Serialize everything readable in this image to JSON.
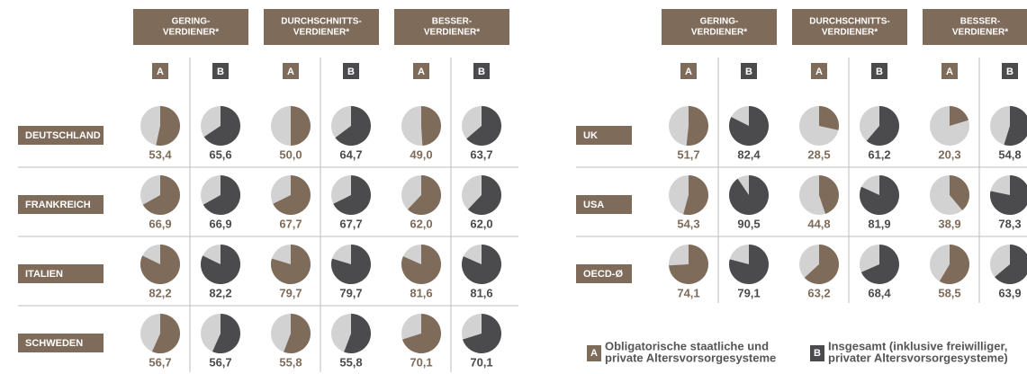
{
  "chart_data": [
    {
      "type": "pie",
      "groups": [
        [
          "GERING-",
          "VERDIENER*"
        ],
        [
          "DURCHSCHNITTS-",
          "VERDIENER*"
        ],
        [
          "BESSER-",
          "VERDIENER*"
        ]
      ],
      "columns": [
        "A",
        "B"
      ],
      "colors": [
        "#7f6b59",
        "#4b4b4d"
      ],
      "rest_color": "#d2d2d2",
      "rows": [
        {
          "name": "DEUTSCHLAND",
          "values": [
            53.4,
            65.6,
            50.0,
            64.7,
            49.0,
            63.7
          ],
          "value_labels": [
            "53,4",
            "65,6",
            "50,0",
            "64,7",
            "49,0",
            "63,7"
          ]
        },
        {
          "name": "FRANKREICH",
          "values": [
            66.9,
            66.9,
            67.7,
            67.7,
            62.0,
            62.0
          ],
          "value_labels": [
            "66,9",
            "66,9",
            "67,7",
            "67,7",
            "62,0",
            "62,0"
          ]
        },
        {
          "name": "ITALIEN",
          "values": [
            82.2,
            82.2,
            79.7,
            79.7,
            81.6,
            81.6
          ],
          "value_labels": [
            "82,2",
            "82,2",
            "79,7",
            "79,7",
            "81,6",
            "81,6"
          ]
        },
        {
          "name": "SCHWEDEN",
          "values": [
            56.7,
            56.7,
            55.8,
            55.8,
            70.1,
            70.1
          ],
          "value_labels": [
            "56,7",
            "56,7",
            "55,8",
            "55,8",
            "70,1",
            "70,1"
          ]
        }
      ]
    },
    {
      "type": "pie",
      "groups": [
        [
          "GERING-",
          "VERDIENER*"
        ],
        [
          "DURCHSCHNITTS-",
          "VERDIENER*"
        ],
        [
          "BESSER-",
          "VERDIENER*"
        ]
      ],
      "columns": [
        "A",
        "B"
      ],
      "colors": [
        "#7f6b59",
        "#4b4b4d"
      ],
      "rest_color": "#d2d2d2",
      "rows": [
        {
          "name": "UK",
          "values": [
            51.7,
            82.4,
            28.5,
            61.2,
            20.3,
            54.8
          ],
          "value_labels": [
            "51,7",
            "82,4",
            "28,5",
            "61,2",
            "20,3",
            "54,8"
          ]
        },
        {
          "name": "USA",
          "values": [
            54.3,
            90.5,
            44.8,
            81.9,
            38.9,
            78.3
          ],
          "value_labels": [
            "54,3",
            "90,5",
            "44,8",
            "81,9",
            "38,9",
            "78,3"
          ]
        },
        {
          "name": "OECD-Ø",
          "values": [
            74.1,
            79.1,
            63.2,
            68.4,
            58.5,
            63.9
          ],
          "value_labels": [
            "74,1",
            "79,1",
            "63,2",
            "68,4",
            "58,5",
            "63,9"
          ]
        }
      ],
      "legend": [
        {
          "key": "A",
          "text": [
            "Obligatorische staatliche und",
            "private Altersvorsorgesysteme"
          ]
        },
        {
          "key": "B",
          "text": [
            "Insgesamt (inklusive freiwilliger,",
            "privater Altersvorsorgesysteme)"
          ]
        }
      ]
    }
  ]
}
